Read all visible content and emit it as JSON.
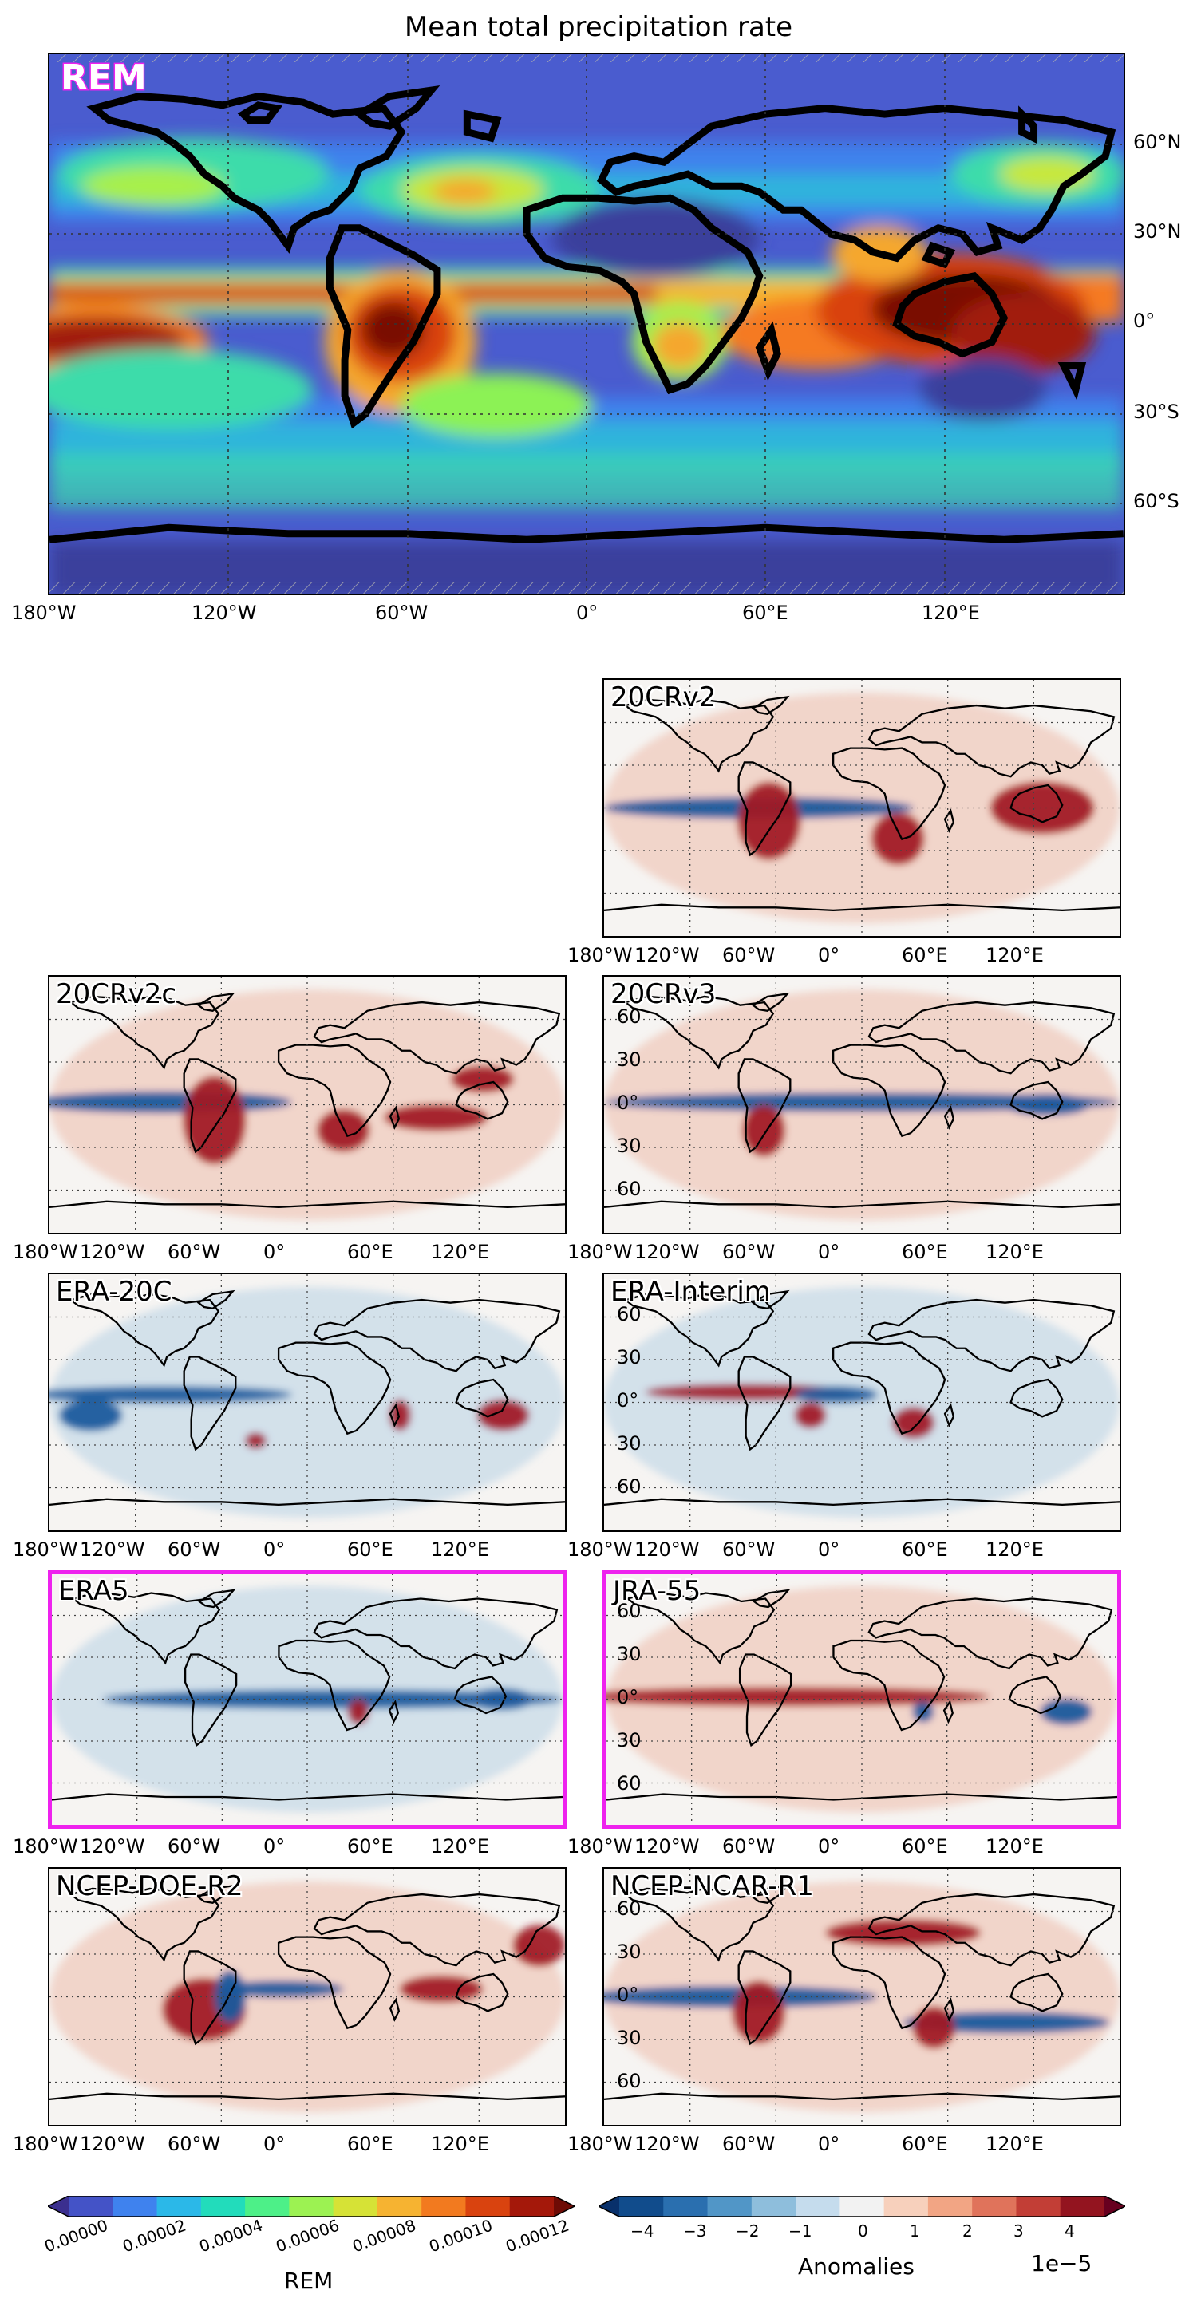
{
  "title": "Mean total precipitation rate",
  "main_panel": {
    "label": "REM",
    "lon_ticks": [
      "180°W",
      "120°W",
      "60°W",
      "0°",
      "60°E",
      "120°E"
    ],
    "lat_ticks": [
      "60°N",
      "30°N",
      "0°",
      "30°S",
      "60°S"
    ]
  },
  "small_lon_ticks": [
    "180°W",
    "120°W",
    "60°W",
    "0°",
    "60°E",
    "120°E"
  ],
  "small_lat_ticks": [
    "60",
    "30",
    "0°",
    "30",
    "60"
  ],
  "panels": [
    {
      "label": "20CRv2",
      "highlight": false
    },
    {
      "label": "20CRv2c",
      "highlight": false
    },
    {
      "label": "20CRv3",
      "highlight": false
    },
    {
      "label": "ERA-20C",
      "highlight": false
    },
    {
      "label": "ERA-Interim",
      "highlight": false
    },
    {
      "label": "ERA5",
      "highlight": true
    },
    {
      "label": "JRA-55",
      "highlight": true
    },
    {
      "label": "NCEP-DOE-R2",
      "highlight": false
    },
    {
      "label": "NCEP-NCAR-R1",
      "highlight": false
    }
  ],
  "colorbar_rem": {
    "label": "REM",
    "ticks": [
      "0.00000",
      "0.00002",
      "0.00004",
      "0.00006",
      "0.00008",
      "0.00010",
      "0.00012"
    ],
    "colors": [
      "#3b2f8f",
      "#4453c7",
      "#3f82ee",
      "#2bb8e8",
      "#22dcbb",
      "#4df088",
      "#9cf252",
      "#d6e236",
      "#f6b331",
      "#f27a1f",
      "#d9430f",
      "#a4180a",
      "#6e0b05"
    ]
  },
  "colorbar_anom": {
    "label": "Anomalies",
    "scale": "1e−5",
    "ticks": [
      "−4",
      "−3",
      "−2",
      "−1",
      "0",
      "1",
      "2",
      "3",
      "4"
    ],
    "colors": [
      "#08306b",
      "#114c8c",
      "#2a6faf",
      "#5196c7",
      "#8ebedc",
      "#c5dced",
      "#f2f2f2",
      "#f7d0bc",
      "#f2a584",
      "#e0735b",
      "#c23e36",
      "#93141f",
      "#67001f"
    ]
  },
  "colors": {
    "highlight": "#ee22ee",
    "rem_base": "#4a5ccf",
    "anomaly_base": "#f6f4f2"
  }
}
